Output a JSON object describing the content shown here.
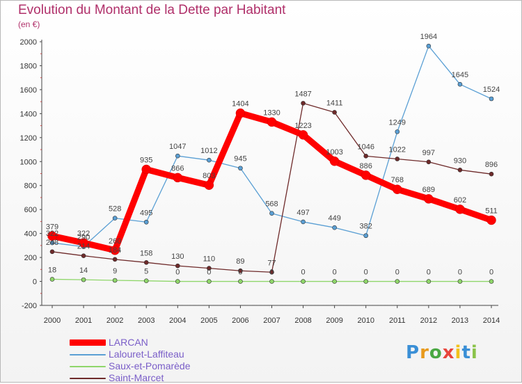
{
  "title": "Evolution du Montant de la Dette par Habitant",
  "subtitle": "(en €)",
  "brand": {
    "letters": [
      "P",
      "r",
      "o",
      "x",
      "i",
      "t",
      "i"
    ],
    "colors": [
      "#3a8fd6",
      "#e89a1c",
      "#4aa843",
      "#e8453c",
      "#f2c21a",
      "#3a8fd6",
      "#8bc34a"
    ]
  },
  "chart_data": {
    "type": "line",
    "x": [
      2000,
      2001,
      2002,
      2003,
      2004,
      2005,
      2006,
      2007,
      2008,
      2009,
      2010,
      2011,
      2012,
      2013,
      2014
    ],
    "ylim": [
      -200,
      2000
    ],
    "yticks": [
      -200,
      0,
      200,
      400,
      600,
      800,
      1000,
      1200,
      1400,
      1600,
      1800,
      2000
    ],
    "grid": false,
    "legend_position": "bottom-left",
    "series": [
      {
        "name": "LARCAN",
        "color": "#ff0000",
        "values": [
          379,
          322,
          260,
          935,
          866,
          803,
          1404,
          1330,
          1223,
          1003,
          886,
          768,
          689,
          602,
          511
        ],
        "labels": [
          "379",
          "322",
          "260",
          "935",
          "866",
          "803",
          "1404",
          "1330",
          "1223",
          "1003",
          "886",
          "768",
          "689",
          "602",
          "511"
        ]
      },
      {
        "name": "Lalouret-Laffiteau",
        "color": "#5a9fd4",
        "values": [
          322,
          290,
          528,
          495,
          1047,
          1012,
          945,
          568,
          497,
          449,
          382,
          1249,
          1964,
          1645,
          1524
        ],
        "labels": [
          "322",
          "290",
          "528",
          "495",
          "1047",
          "1012",
          "945",
          "568",
          "497",
          "449",
          "382",
          "1249",
          "1964",
          "1645",
          "1524"
        ]
      },
      {
        "name": "Saux-et-Pomarède",
        "color": "#8fd66a",
        "values": [
          18,
          14,
          9,
          5,
          0,
          0,
          0,
          0,
          0,
          0,
          0,
          0,
          0,
          0,
          0
        ],
        "labels": [
          "18",
          "14",
          "9",
          "5",
          "0",
          "0",
          "0",
          "0",
          "0",
          "0",
          "0",
          "0",
          "0",
          "0",
          "0"
        ]
      },
      {
        "name": "Saint-Marcet",
        "color": "#6e2a2a",
        "values": [
          248,
          214,
          184,
          158,
          130,
          110,
          89,
          77,
          1487,
          1411,
          1046,
          1022,
          997,
          930,
          896
        ],
        "labels": [
          "248",
          "214",
          "184",
          "158",
          "130",
          "110",
          "89",
          "77",
          "1487",
          "1411",
          "1046",
          "1022",
          "997",
          "930",
          "896"
        ]
      }
    ]
  }
}
